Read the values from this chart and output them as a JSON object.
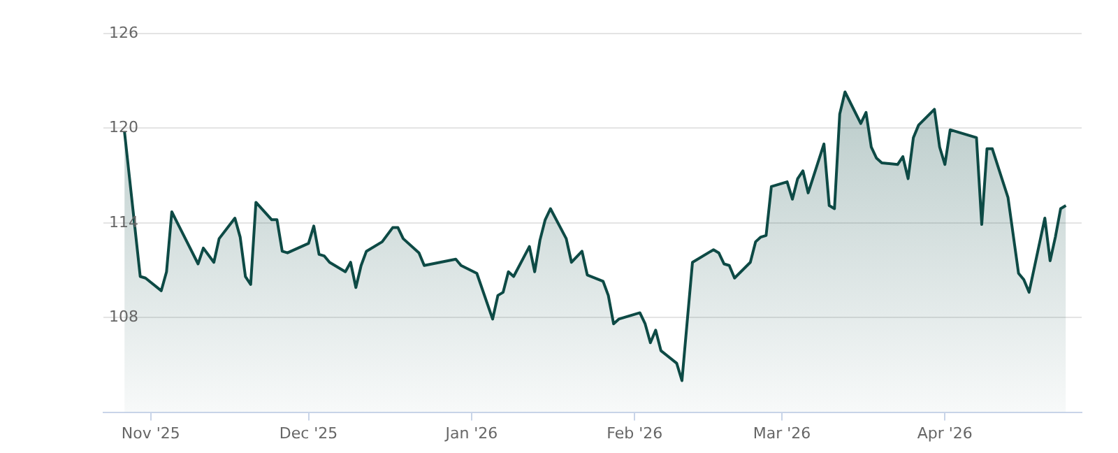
{
  "chart_data": {
    "type": "area",
    "x": [
      "2025-10-27",
      "2025-10-30",
      "2025-10-31",
      "2025-11-03",
      "2025-11-04",
      "2025-11-05",
      "2025-11-10",
      "2025-11-11",
      "2025-11-13",
      "2025-11-14",
      "2025-11-17",
      "2025-11-18",
      "2025-11-19",
      "2025-11-20",
      "2025-11-21",
      "2025-11-24",
      "2025-11-25",
      "2025-11-26",
      "2025-11-27",
      "2025-12-01",
      "2025-12-02",
      "2025-12-03",
      "2025-12-04",
      "2025-12-05",
      "2025-12-08",
      "2025-12-09",
      "2025-12-10",
      "2025-12-11",
      "2025-12-12",
      "2025-12-15",
      "2025-12-17",
      "2025-12-18",
      "2025-12-19",
      "2025-12-22",
      "2025-12-23",
      "2025-12-29",
      "2025-12-30",
      "2026-01-02",
      "2026-01-05",
      "2026-01-06",
      "2026-01-07",
      "2026-01-08",
      "2026-01-09",
      "2026-01-12",
      "2026-01-13",
      "2026-01-14",
      "2026-01-15",
      "2026-01-16",
      "2026-01-19",
      "2026-01-20",
      "2026-01-22",
      "2026-01-23",
      "2026-01-26",
      "2026-01-27",
      "2026-01-28",
      "2026-01-29",
      "2026-02-02",
      "2026-02-03",
      "2026-02-04",
      "2026-02-05",
      "2026-02-06",
      "2026-02-09",
      "2026-02-10",
      "2026-02-12",
      "2026-02-16",
      "2026-02-17",
      "2026-02-18",
      "2026-02-19",
      "2026-02-20",
      "2026-02-23",
      "2026-02-24",
      "2026-02-25",
      "2026-02-26",
      "2026-02-27",
      "2026-03-02",
      "2026-03-03",
      "2026-03-04",
      "2026-03-05",
      "2026-03-06",
      "2026-03-09",
      "2026-03-10",
      "2026-03-11",
      "2026-03-12",
      "2026-03-13",
      "2026-03-16",
      "2026-03-17",
      "2026-03-18",
      "2026-03-19",
      "2026-03-20",
      "2026-03-23",
      "2026-03-24",
      "2026-03-25",
      "2026-03-26",
      "2026-03-27",
      "2026-03-30",
      "2026-03-31",
      "2026-04-01",
      "2026-04-02",
      "2026-04-07",
      "2026-04-08",
      "2026-04-09",
      "2026-04-10",
      "2026-04-13",
      "2026-04-15",
      "2026-04-16",
      "2026-04-17",
      "2026-04-20",
      "2026-04-21",
      "2026-04-22",
      "2026-04-23",
      "2026-04-24"
    ],
    "series": [
      {
        "color": "#0d4a45",
        "values": [
          119.8,
          110.6,
          110.5,
          109.7,
          110.9,
          114.7,
          111.4,
          112.4,
          111.5,
          113.0,
          114.3,
          113.1,
          110.6,
          110.1,
          115.3,
          114.2,
          114.2,
          112.2,
          112.1,
          112.7,
          113.8,
          112.0,
          111.9,
          111.5,
          110.9,
          111.5,
          109.9,
          111.3,
          112.2,
          112.8,
          113.7,
          113.7,
          113.0,
          112.1,
          111.3,
          111.7,
          111.3,
          110.8,
          107.9,
          109.4,
          109.6,
          110.9,
          110.6,
          112.5,
          110.9,
          112.9,
          114.2,
          114.9,
          113.0,
          111.5,
          112.2,
          110.7,
          110.3,
          109.4,
          107.6,
          107.9,
          108.3,
          107.6,
          106.4,
          107.2,
          105.9,
          105.1,
          104.0,
          111.5,
          112.3,
          112.1,
          111.4,
          111.3,
          110.5,
          111.5,
          112.8,
          113.1,
          113.2,
          116.3,
          116.6,
          115.5,
          116.8,
          117.3,
          115.9,
          119.0,
          115.1,
          114.9,
          120.9,
          122.3,
          120.3,
          121.0,
          118.8,
          118.1,
          117.8,
          117.7,
          118.2,
          116.8,
          119.4,
          120.2,
          121.2,
          118.8,
          117.7,
          119.9,
          119.4,
          113.9,
          118.7,
          118.7,
          115.6,
          110.8,
          110.4,
          109.6,
          114.3,
          111.6,
          113.1,
          114.9,
          115.1
        ]
      }
    ],
    "xlim": [
      "2025-10-23",
      "2026-04-27"
    ],
    "xticks": [
      {
        "value": "2025-11-01",
        "label": "Nov '25"
      },
      {
        "value": "2025-12-01",
        "label": "Dec '25"
      },
      {
        "value": "2026-01-01",
        "label": "Jan '26"
      },
      {
        "value": "2026-02-01",
        "label": "Feb '26"
      },
      {
        "value": "2026-03-01",
        "label": "Mar '26"
      },
      {
        "value": "2026-04-01",
        "label": "Apr '26"
      }
    ],
    "ylim": [
      102,
      126
    ],
    "yticks": [
      108,
      114,
      120,
      126
    ],
    "grid": "y",
    "legend": false,
    "marker": "none",
    "line_style": "solid"
  }
}
